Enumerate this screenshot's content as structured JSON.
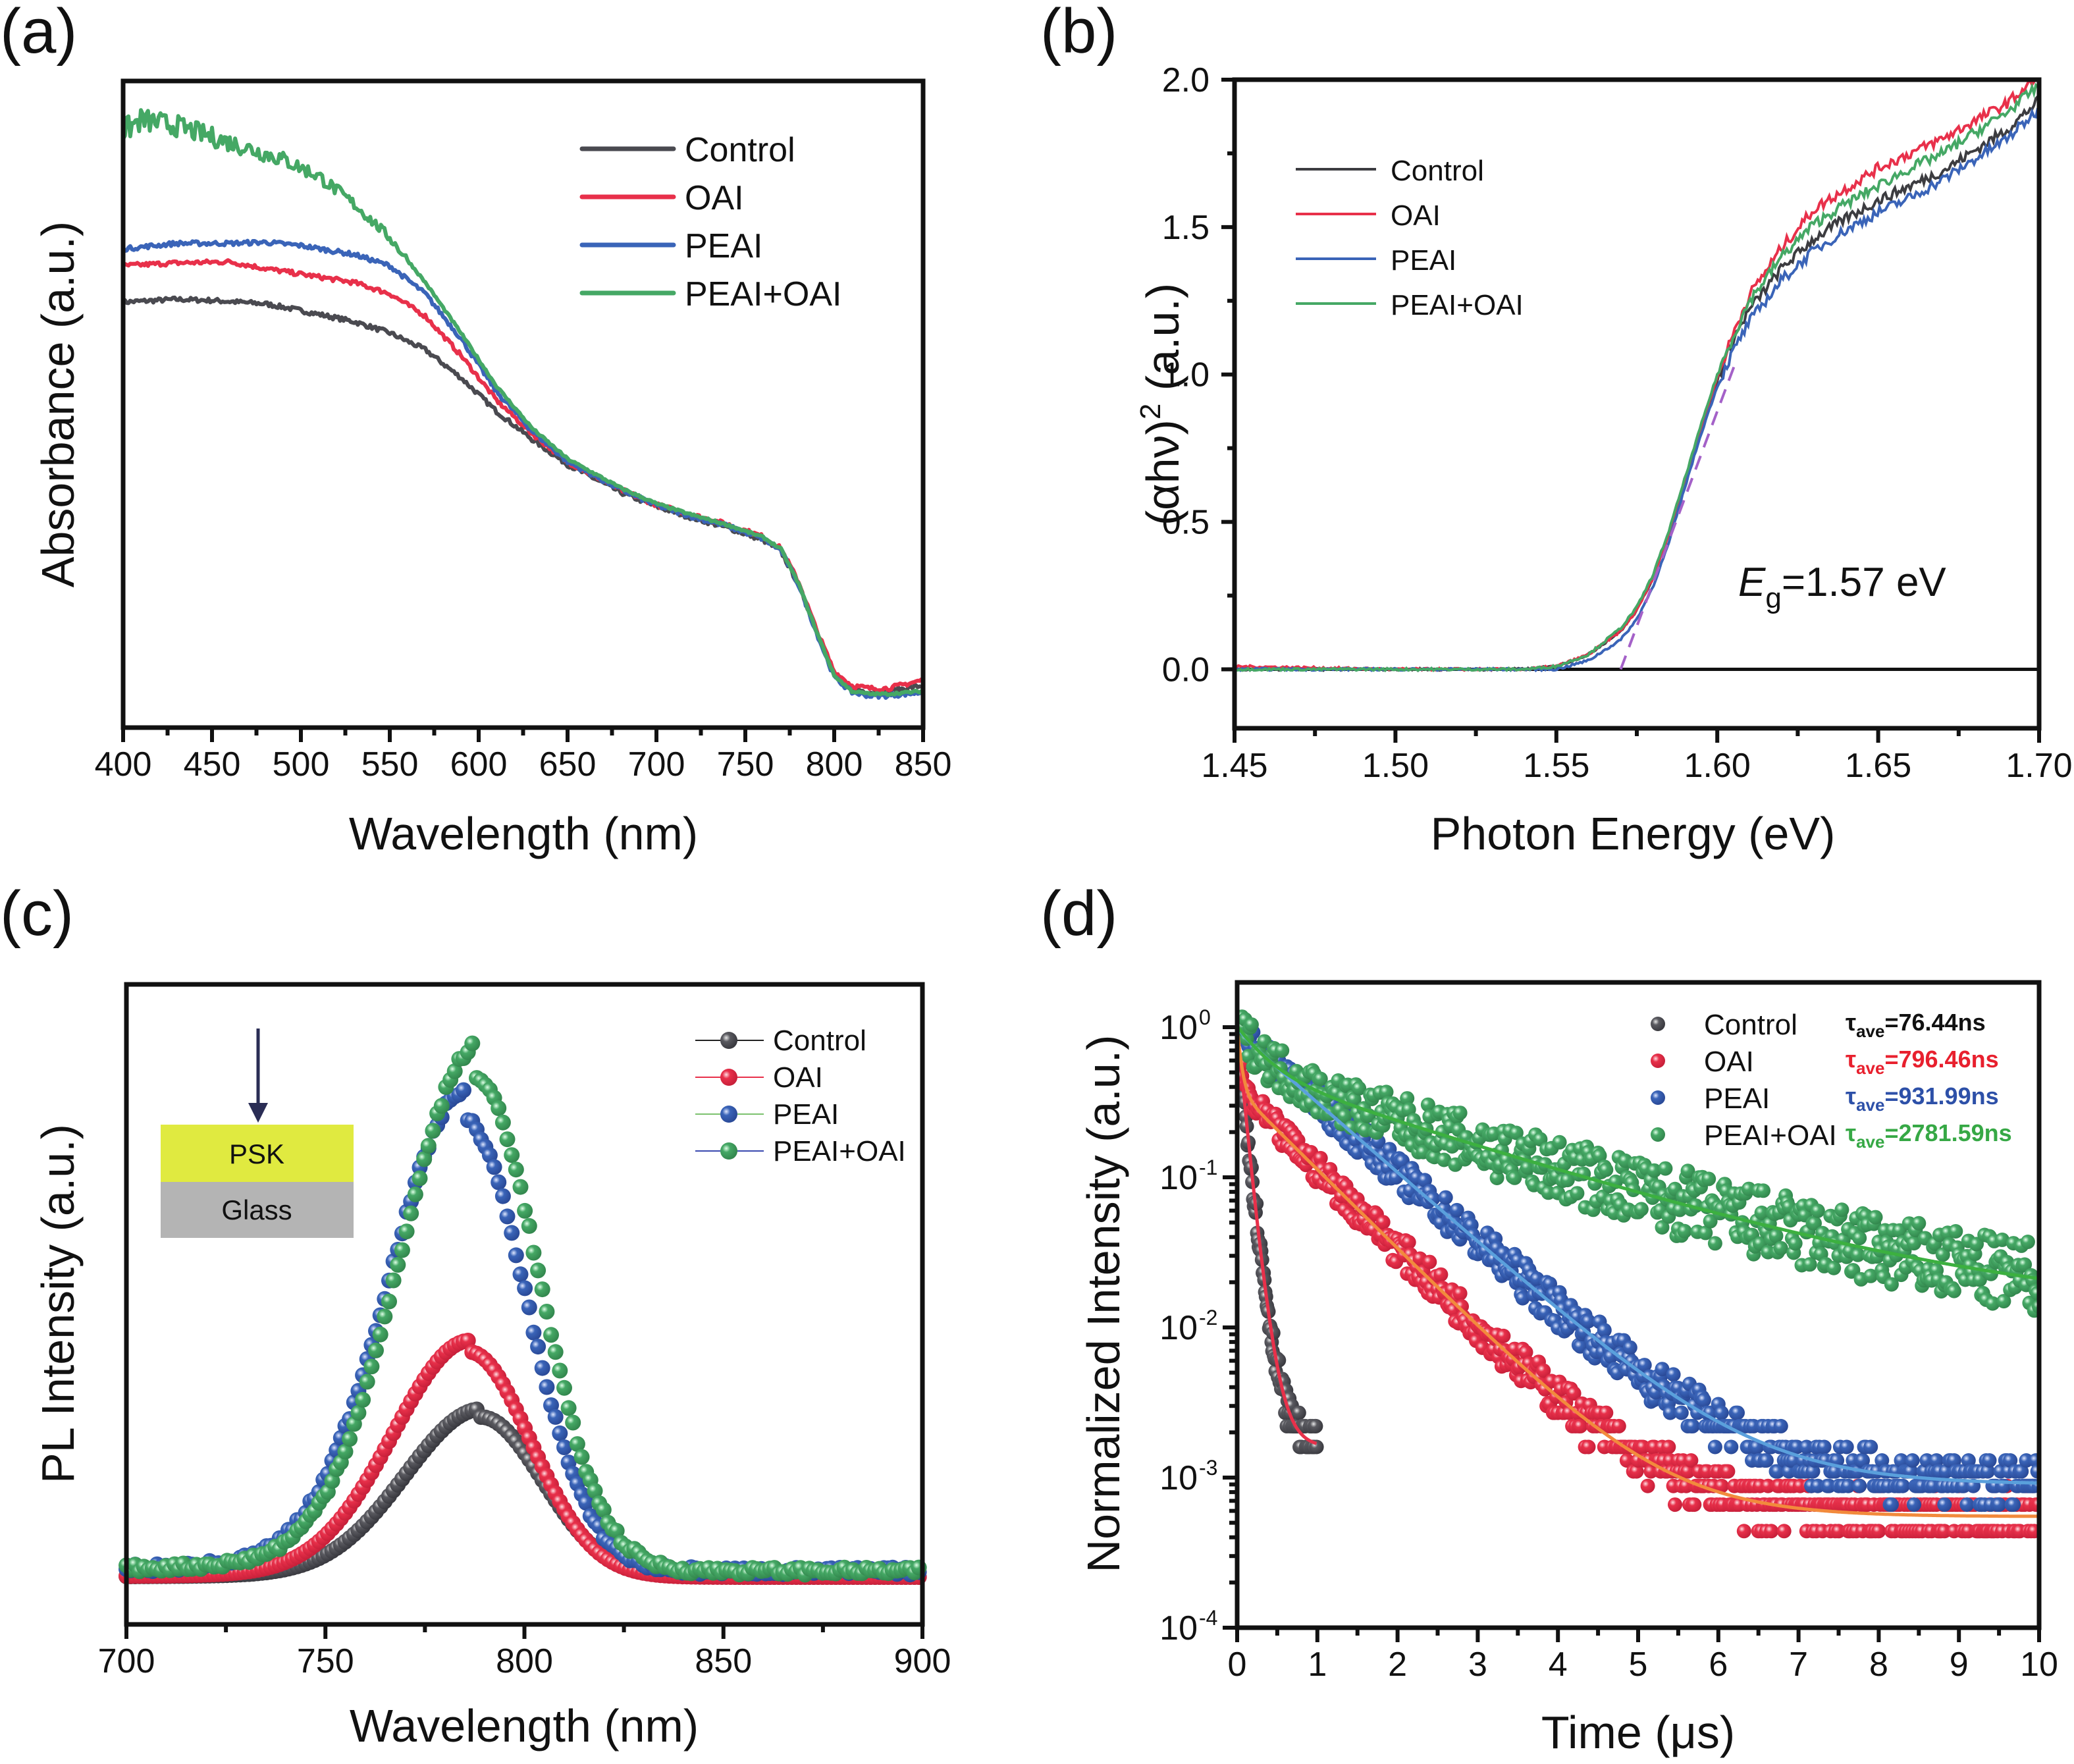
{
  "figure": {
    "panels": [
      "(a)",
      "(b)",
      "(c)",
      "(d)"
    ]
  },
  "chart_data": [
    {
      "id": "a",
      "panel_label": "(a)",
      "type": "line",
      "title": "",
      "xlabel": "Wavelength (nm)",
      "ylabel": "Absorbance (a.u.)",
      "xlim": [
        400,
        850
      ],
      "ylim": [
        0,
        1
      ],
      "y_ticks_labeled": false,
      "xticks": [
        400,
        450,
        500,
        550,
        600,
        650,
        700,
        750,
        800,
        850
      ],
      "xtick_labels": [
        "400",
        "450",
        "500",
        "550",
        "600",
        "650",
        "700",
        "750",
        "800",
        "850"
      ],
      "grid": false,
      "legend": {
        "placement": "top-right",
        "entries": [
          "Control",
          "OAI",
          "PEAI",
          "PEAI+OAI"
        ]
      },
      "series": [
        {
          "name": "Control",
          "color": "#4a4a50",
          "x": [
            400,
            430,
            450,
            480,
            500,
            530,
            550,
            570,
            590,
            610,
            630,
            650,
            680,
            700,
            720,
            740,
            760,
            770,
            780,
            790,
            800,
            810,
            820,
            830,
            850
          ],
          "y": [
            0.725,
            0.73,
            0.728,
            0.722,
            0.71,
            0.69,
            0.67,
            0.64,
            0.59,
            0.53,
            0.48,
            0.435,
            0.385,
            0.36,
            0.34,
            0.322,
            0.3,
            0.28,
            0.22,
            0.14,
            0.06,
            0.035,
            0.028,
            0.03,
            0.04
          ]
        },
        {
          "name": "OAI",
          "color": "#e8304a",
          "x": [
            400,
            430,
            460,
            480,
            500,
            530,
            550,
            570,
            590,
            610,
            630,
            650,
            680,
            700,
            720,
            740,
            760,
            770,
            780,
            790,
            800,
            810,
            820,
            830,
            850
          ],
          "y": [
            0.79,
            0.795,
            0.797,
            0.785,
            0.775,
            0.76,
            0.74,
            0.7,
            0.63,
            0.55,
            0.49,
            0.44,
            0.39,
            0.363,
            0.345,
            0.328,
            0.306,
            0.285,
            0.225,
            0.14,
            0.065,
            0.04,
            0.035,
            0.035,
            0.05
          ]
        },
        {
          "name": "PEAI",
          "color": "#3a64b8",
          "x": [
            400,
            430,
            460,
            480,
            500,
            530,
            550,
            570,
            590,
            610,
            630,
            650,
            680,
            700,
            720,
            740,
            760,
            770,
            780,
            790,
            800,
            810,
            820,
            830,
            850
          ],
          "y": [
            0.82,
            0.83,
            0.83,
            0.832,
            0.826,
            0.81,
            0.79,
            0.74,
            0.66,
            0.565,
            0.495,
            0.44,
            0.39,
            0.362,
            0.342,
            0.325,
            0.302,
            0.282,
            0.22,
            0.135,
            0.055,
            0.028,
            0.022,
            0.022,
            0.028
          ]
        },
        {
          "name": "PEAI+OAI",
          "color": "#45a865",
          "x": [
            400,
            410,
            430,
            450,
            470,
            490,
            510,
            530,
            550,
            570,
            590,
            610,
            630,
            650,
            680,
            700,
            720,
            740,
            760,
            770,
            780,
            790,
            800,
            810,
            820,
            830,
            850
          ],
          "y": [
            1.03,
            1.05,
            1.04,
            1.02,
            1.0,
            0.98,
            0.95,
            0.9,
            0.84,
            0.76,
            0.67,
            0.575,
            0.5,
            0.445,
            0.393,
            0.365,
            0.345,
            0.327,
            0.305,
            0.284,
            0.222,
            0.137,
            0.058,
            0.03,
            0.025,
            0.025,
            0.03
          ]
        }
      ]
    },
    {
      "id": "b",
      "panel_label": "(b)",
      "type": "line",
      "title": "",
      "xlabel": "Photon Energy (eV)",
      "ylabel": "(αhν)² (a.u.)",
      "ylabel_parts": {
        "pre": "(αhν)",
        "sup": "2",
        "post": " (a.u.)"
      },
      "xlim": [
        1.45,
        1.7
      ],
      "ylim": [
        -0.2,
        2.0
      ],
      "xticks": [
        1.45,
        1.5,
        1.55,
        1.6,
        1.65,
        1.7
      ],
      "xtick_labels": [
        "1.45",
        "1.50",
        "1.55",
        "1.60",
        "1.65",
        "1.70"
      ],
      "yticks": [
        0.0,
        0.5,
        1.0,
        1.5,
        2.0
      ],
      "ytick_labels": [
        "0.0",
        "0.5",
        "1.0",
        "1.5",
        "2.0"
      ],
      "grid": false,
      "legend": {
        "placement": "top-left",
        "entries": [
          "Control",
          "OAI",
          "PEAI",
          "PEAI+OAI"
        ]
      },
      "annotations": [
        {
          "text_italic": "E",
          "text_sub": "g",
          "text_rest": "=1.57 eV"
        }
      ],
      "baseline_y": 0.0,
      "tangent_fit": {
        "color": "#a461c8",
        "x": [
          1.57,
          1.606
        ],
        "y": [
          0.0,
          1.05
        ],
        "style": "dashed"
      },
      "series": [
        {
          "name": "Control",
          "color": "#3c3c40",
          "x": [
            1.45,
            1.5,
            1.54,
            1.55,
            1.56,
            1.57,
            1.575,
            1.58,
            1.585,
            1.59,
            1.595,
            1.6,
            1.605,
            1.61,
            1.62,
            1.63,
            1.64,
            1.65,
            1.66,
            1.67,
            1.68,
            1.69,
            1.7
          ],
          "y": [
            0.0,
            0.0,
            0.0,
            0.01,
            0.05,
            0.13,
            0.2,
            0.31,
            0.46,
            0.64,
            0.82,
            0.98,
            1.12,
            1.22,
            1.36,
            1.46,
            1.53,
            1.59,
            1.64,
            1.69,
            1.76,
            1.83,
            1.93
          ]
        },
        {
          "name": "OAI",
          "color": "#e8304a",
          "x": [
            1.45,
            1.5,
            1.54,
            1.55,
            1.56,
            1.57,
            1.575,
            1.58,
            1.585,
            1.59,
            1.595,
            1.6,
            1.605,
            1.61,
            1.62,
            1.63,
            1.64,
            1.65,
            1.66,
            1.67,
            1.68,
            1.69,
            1.7
          ],
          "y": [
            0.01,
            0.0,
            0.0,
            0.01,
            0.05,
            0.13,
            0.2,
            0.31,
            0.46,
            0.64,
            0.82,
            0.99,
            1.14,
            1.27,
            1.43,
            1.56,
            1.63,
            1.7,
            1.75,
            1.8,
            1.86,
            1.92,
            2.01
          ]
        },
        {
          "name": "PEAI",
          "color": "#3a64b8",
          "x": [
            1.45,
            1.5,
            1.54,
            1.55,
            1.56,
            1.57,
            1.575,
            1.58,
            1.585,
            1.59,
            1.595,
            1.6,
            1.605,
            1.61,
            1.62,
            1.63,
            1.64,
            1.65,
            1.66,
            1.67,
            1.68,
            1.69,
            1.7
          ],
          "y": [
            0.0,
            0.0,
            0.0,
            0.0,
            0.03,
            0.1,
            0.17,
            0.28,
            0.43,
            0.62,
            0.8,
            0.96,
            1.08,
            1.18,
            1.32,
            1.42,
            1.49,
            1.55,
            1.6,
            1.66,
            1.73,
            1.8,
            1.9
          ]
        },
        {
          "name": "PEAI+OAI",
          "color": "#45a865",
          "x": [
            1.45,
            1.5,
            1.54,
            1.55,
            1.56,
            1.57,
            1.575,
            1.58,
            1.585,
            1.59,
            1.595,
            1.6,
            1.605,
            1.61,
            1.62,
            1.63,
            1.64,
            1.65,
            1.66,
            1.67,
            1.68,
            1.69,
            1.7
          ],
          "y": [
            0.0,
            0.0,
            0.0,
            0.01,
            0.05,
            0.14,
            0.21,
            0.32,
            0.47,
            0.65,
            0.83,
            1.0,
            1.13,
            1.25,
            1.4,
            1.51,
            1.58,
            1.64,
            1.7,
            1.75,
            1.82,
            1.89,
            1.98
          ]
        }
      ]
    },
    {
      "id": "c",
      "panel_label": "(c)",
      "type": "scatter",
      "title": "",
      "xlabel": "Wavelength (nm)",
      "ylabel": "PL Intensity (a.u.)",
      "xlim": [
        700,
        900
      ],
      "ylim": [
        0,
        1
      ],
      "y_ticks_labeled": false,
      "xticks": [
        700,
        750,
        800,
        850,
        900
      ],
      "xtick_labels": [
        "700",
        "750",
        "800",
        "850",
        "900"
      ],
      "grid": false,
      "legend": {
        "placement": "top-right",
        "entries": [
          {
            "name": "Control",
            "marker_color": "#4a4a50",
            "line_color": "#222222"
          },
          {
            "name": "OAI",
            "marker_color": "#e8304a",
            "line_color": "#e8304a"
          },
          {
            "name": "PEAI",
            "marker_color": "#3a64b8",
            "line_color": "#7cc26e"
          },
          {
            "name": "PEAI+OAI",
            "marker_color": "#45a865",
            "line_color": "#3a4ab0"
          }
        ]
      },
      "inset": {
        "arrow": "incident-light",
        "layers": [
          {
            "label": "PSK",
            "color": "#e0ea40"
          },
          {
            "label": "Glass",
            "color": "#b4b4b4"
          }
        ]
      },
      "series": [
        {
          "name": "Control",
          "color": "#4a4a50",
          "peak_nm": 789,
          "peak_intensity": 0.27,
          "baseline": 0.0
        },
        {
          "name": "OAI",
          "color": "#e8304a",
          "peak_nm": 786,
          "peak_intensity": 0.38,
          "baseline": 0.0
        },
        {
          "name": "PEAI",
          "color": "#3a64b8",
          "peak_nm": 785,
          "peak_intensity": 0.76,
          "baseline": 0.01
        },
        {
          "name": "PEAI+OAI",
          "color": "#45a865",
          "peak_nm": 788,
          "peak_intensity": 0.83,
          "baseline": 0.01
        }
      ]
    },
    {
      "id": "d",
      "panel_label": "(d)",
      "type": "scatter",
      "title": "",
      "xlabel": "Time (μs)",
      "ylabel": "Normalized Intensity (a.u.)",
      "xlim": [
        0,
        10
      ],
      "ylim": [
        0.0001,
        2
      ],
      "yscale": "log",
      "xticks": [
        0,
        1,
        2,
        3,
        4,
        5,
        6,
        7,
        8,
        9,
        10
      ],
      "xtick_labels": [
        "0",
        "1",
        "2",
        "3",
        "4",
        "5",
        "6",
        "7",
        "8",
        "9",
        "10"
      ],
      "yticks": [
        1,
        0.1,
        0.01,
        0.001,
        0.0001
      ],
      "ytick_labels": [
        {
          "base": "10",
          "exp": "0"
        },
        {
          "base": "10",
          "exp": "-1"
        },
        {
          "base": "10",
          "exp": "-2"
        },
        {
          "base": "10",
          "exp": "-3"
        },
        {
          "base": "10",
          "exp": "-4"
        }
      ],
      "grid": false,
      "legend": {
        "placement": "top-right",
        "entries": [
          "Control",
          "OAI",
          "PEAI",
          "PEAI+OAI"
        ]
      },
      "tau_labels": [
        {
          "prefix": "τ",
          "sub": "ave",
          "value": "=76.44ns",
          "color": "#111111"
        },
        {
          "prefix": "τ",
          "sub": "ave",
          "value": "=796.46ns",
          "color": "#e8202e"
        },
        {
          "prefix": "τ",
          "sub": "ave",
          "value": "=931.99ns",
          "color": "#2d50a8"
        },
        {
          "prefix": "τ",
          "sub": "ave",
          "value": "=2781.59ns",
          "color": "#36a845"
        }
      ],
      "series": [
        {
          "name": "Control",
          "color": "#4a4a50",
          "fit_color": "#e8304a",
          "tau_ns": 76.44,
          "t_end_us": 1.0,
          "floor": 0.0016
        },
        {
          "name": "OAI",
          "color": "#e8304a",
          "fit_color": "#f28a3c",
          "tau_ns": 796.46,
          "t_end_us": 10,
          "floor": 0.00055
        },
        {
          "name": "PEAI",
          "color": "#3a64b8",
          "fit_color": "#5aa0dc",
          "tau_ns": 931.99,
          "t_end_us": 10,
          "floor": 0.0009
        },
        {
          "name": "PEAI+OAI",
          "color": "#45a865",
          "fit_color": "#3cb040",
          "tau_ns": 2781.59,
          "t_end_us": 10,
          "floor": 0.012
        }
      ]
    }
  ]
}
